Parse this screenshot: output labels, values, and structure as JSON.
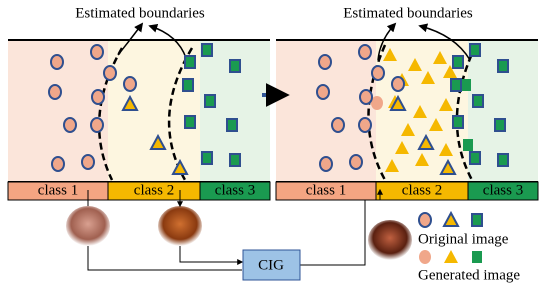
{
  "left_panel": {
    "title": "Estimated boundaries",
    "classes": [
      "class 1",
      "class 2",
      "class 3"
    ]
  },
  "right_panel": {
    "title": "Estimated boundaries",
    "classes": [
      "class 1",
      "class 2",
      "class 3"
    ]
  },
  "cig": "CIG",
  "legend": {
    "original": "Original image",
    "generated": "Generated image"
  }
}
